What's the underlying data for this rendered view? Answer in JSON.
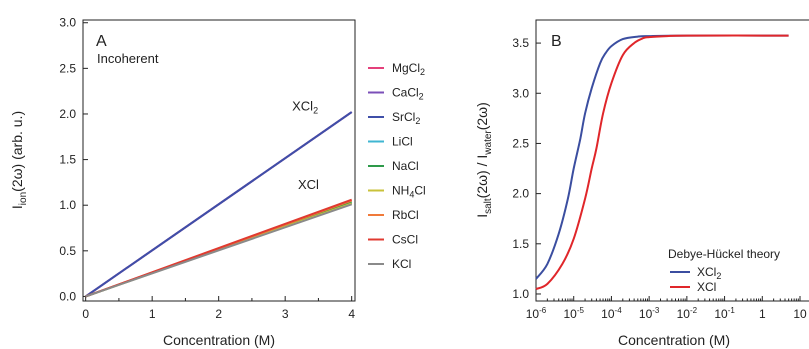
{
  "chart_data": [
    {
      "type": "line",
      "panel": "A",
      "subtitle": "Incoherent",
      "xlabel": "Concentration (M)",
      "ylabel_main": "I",
      "ylabel_sub": "ion",
      "ylabel_rest": "(2ω)  (arb. u.)",
      "xlim": [
        -0.04,
        4.05
      ],
      "ylim": [
        -0.05,
        3.03
      ],
      "xticks": [
        0,
        1,
        2,
        3,
        4
      ],
      "yticks": [
        0.0,
        0.5,
        1.0,
        1.5,
        2.0,
        2.5,
        3.0
      ],
      "ytick_labels": [
        "0.0",
        "0.5",
        "1.0",
        "1.5",
        "2.0",
        "2.5",
        "3.0"
      ],
      "series": [
        {
          "name": "MgCl",
          "sub": "2",
          "color": "#e4407b",
          "x": [
            0,
            4
          ],
          "y": [
            0.0,
            2.02
          ]
        },
        {
          "name": "CaCl",
          "sub": "2",
          "color": "#7b4fb8",
          "x": [
            0,
            4
          ],
          "y": [
            0.0,
            2.02
          ]
        },
        {
          "name": "SrCl",
          "sub": "2",
          "color": "#3f4fa8",
          "x": [
            0,
            4
          ],
          "y": [
            0.0,
            2.02
          ]
        },
        {
          "name": "LiCl",
          "sub": "",
          "color": "#3fb6d2",
          "x": [
            0,
            4
          ],
          "y": [
            0.0,
            1.04
          ]
        },
        {
          "name": "NaCl",
          "sub": "",
          "color": "#2e9a4a",
          "x": [
            0,
            4
          ],
          "y": [
            0.0,
            1.03
          ]
        },
        {
          "name": "NH",
          "sub": "4",
          "suffix": "Cl",
          "color": "#c9c23a",
          "x": [
            0,
            4
          ],
          "y": [
            0.0,
            1.02
          ]
        },
        {
          "name": "RbCl",
          "sub": "",
          "color": "#f07a3a",
          "x": [
            0,
            4
          ],
          "y": [
            0.0,
            1.05
          ]
        },
        {
          "name": "CsCl",
          "sub": "",
          "color": "#e03a30",
          "x": [
            0,
            4
          ],
          "y": [
            0.0,
            1.06
          ]
        },
        {
          "name": "KCl",
          "sub": "",
          "color": "#8a8a8a",
          "x": [
            0,
            4
          ],
          "y": [
            0.0,
            1.01
          ]
        }
      ],
      "annotations": [
        {
          "text": "XCl",
          "sub": "2",
          "x": 3.3,
          "y": 2.04
        },
        {
          "text": "XCl",
          "sub": "",
          "x": 3.35,
          "y": 1.18
        }
      ]
    },
    {
      "type": "line",
      "panel": "B",
      "xscale": "log",
      "xlabel": "Concentration (M)",
      "ylabel": "I_salt(2ω) / I_water(2ω)",
      "ylabel_parts": [
        "I",
        "salt",
        "(2ω) / I",
        "water",
        "(2ω)"
      ],
      "xlim": [
        1e-06,
        10
      ],
      "ylim": [
        0.93,
        3.73
      ],
      "yticks": [
        1.0,
        1.5,
        2.0,
        2.5,
        3.0,
        3.5
      ],
      "ytick_labels": [
        "1.0",
        "1.5",
        "2.0",
        "2.5",
        "3.0",
        "3.5"
      ],
      "xticks": [
        {
          "value": 1e-06,
          "base": "10",
          "exp": "-6"
        },
        {
          "value": 1e-05,
          "base": "10",
          "exp": "-5"
        },
        {
          "value": 0.0001,
          "base": "10",
          "exp": "-4"
        },
        {
          "value": 0.001,
          "base": "10",
          "exp": "-3"
        },
        {
          "value": 0.01,
          "base": "10",
          "exp": "-2"
        },
        {
          "value": 0.1,
          "base": "10",
          "exp": "-1"
        },
        {
          "value": 1,
          "base": "1",
          "exp": ""
        },
        {
          "value": 10,
          "base": "10",
          "exp": ""
        }
      ],
      "legend_title": "Debye-Hückel theory",
      "legend_position": "bottom-right",
      "series": [
        {
          "name": "XCl",
          "sub": "2",
          "color": "#3b4ea0",
          "x": [
            1e-06,
            2e-06,
            4e-06,
            7e-06,
            1e-05,
            1.5e-05,
            2e-05,
            3e-05,
            5e-05,
            7e-05,
            0.0001,
            0.0002,
            0.0005,
            0.001,
            0.01,
            5
          ],
          "y": [
            1.15,
            1.3,
            1.6,
            1.95,
            2.25,
            2.55,
            2.8,
            3.05,
            3.3,
            3.4,
            3.47,
            3.54,
            3.565,
            3.57,
            3.575,
            3.575
          ]
        },
        {
          "name": "XCl",
          "sub": "",
          "color": "#e0262a",
          "x": [
            1e-06,
            2e-06,
            5e-06,
            1e-05,
            2e-05,
            3e-05,
            4e-05,
            6e-05,
            0.0001,
            0.0002,
            0.0004,
            0.0007,
            0.001,
            0.003,
            0.01,
            5
          ],
          "y": [
            1.05,
            1.1,
            1.3,
            1.55,
            1.95,
            2.25,
            2.45,
            2.8,
            3.1,
            3.38,
            3.5,
            3.55,
            3.56,
            3.57,
            3.575,
            3.575
          ]
        }
      ]
    }
  ]
}
